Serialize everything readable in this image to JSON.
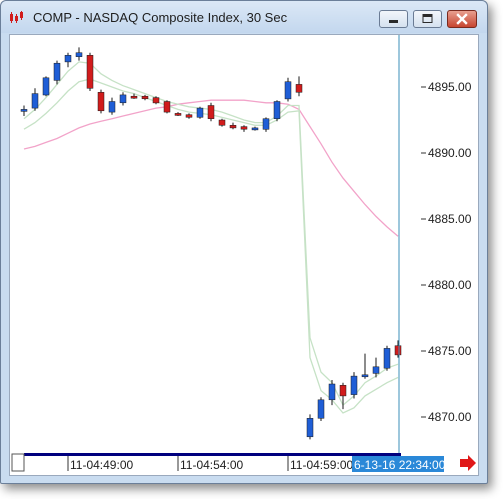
{
  "window": {
    "title": "COMP - NASDAQ Composite Index, 30 Sec",
    "minimize_icon": "minimize-icon",
    "maximize_icon": "maximize-icon",
    "close_icon": "close-icon",
    "app_icon": "candlestick-app-icon"
  },
  "price_axis": {
    "labels": [
      "4895.00",
      "4890.00",
      "4885.00",
      "4880.00",
      "4875.00",
      "4870.00"
    ]
  },
  "time_axis": {
    "labels": [
      "11-04:49:00",
      "11-04:54:00",
      "11-04:59:00"
    ],
    "cursor_time": "6-13-16 22:34:00"
  },
  "scroll_arrow": {
    "icon": "red-right-arrow-icon"
  },
  "colors": {
    "up_candle": "#1f5ed6",
    "down_candle": "#d11c1c",
    "avg_line_green": "#c6e2c6",
    "avg_line_pink": "#f2a3c9",
    "cursor_line": "#3b8fb8",
    "cursor_box": "#2a88d8",
    "scrollbar": "#00007e"
  },
  "chart_data": {
    "type": "candlestick",
    "symbol": "COMP",
    "interval": "30 Sec",
    "ylim": [
      4868,
      4900
    ],
    "candles": [
      {
        "o": 4893.2,
        "h": 4893.6,
        "l": 4892.8,
        "c": 4893.3
      },
      {
        "o": 4893.4,
        "h": 4894.9,
        "l": 4893.2,
        "c": 4894.5
      },
      {
        "o": 4894.4,
        "h": 4895.8,
        "l": 4894.3,
        "c": 4895.7
      },
      {
        "o": 4895.5,
        "h": 4897.0,
        "l": 4895.2,
        "c": 4896.8
      },
      {
        "o": 4896.9,
        "h": 4897.6,
        "l": 4896.5,
        "c": 4897.4
      },
      {
        "o": 4897.3,
        "h": 4898.0,
        "l": 4897.0,
        "c": 4897.6
      },
      {
        "o": 4897.4,
        "h": 4897.6,
        "l": 4894.7,
        "c": 4894.9
      },
      {
        "o": 4894.6,
        "h": 4894.8,
        "l": 4893.0,
        "c": 4893.2
      },
      {
        "o": 4893.1,
        "h": 4894.2,
        "l": 4892.9,
        "c": 4893.9
      },
      {
        "o": 4893.8,
        "h": 4894.6,
        "l": 4893.6,
        "c": 4894.4
      },
      {
        "o": 4894.3,
        "h": 4894.5,
        "l": 4894.1,
        "c": 4894.2
      },
      {
        "o": 4894.3,
        "h": 4894.4,
        "l": 4894.0,
        "c": 4894.1
      },
      {
        "o": 4894.2,
        "h": 4894.3,
        "l": 4893.7,
        "c": 4893.8
      },
      {
        "o": 4893.9,
        "h": 4894.0,
        "l": 4893.0,
        "c": 4893.1
      },
      {
        "o": 4893.0,
        "h": 4893.1,
        "l": 4892.8,
        "c": 4892.9
      },
      {
        "o": 4892.9,
        "h": 4893.0,
        "l": 4892.6,
        "c": 4892.7
      },
      {
        "o": 4892.7,
        "h": 4893.5,
        "l": 4892.6,
        "c": 4893.4
      },
      {
        "o": 4893.6,
        "h": 4893.8,
        "l": 4892.4,
        "c": 4892.6
      },
      {
        "o": 4892.5,
        "h": 4892.6,
        "l": 4892.0,
        "c": 4892.1
      },
      {
        "o": 4892.1,
        "h": 4892.3,
        "l": 4891.8,
        "c": 4891.9
      },
      {
        "o": 4892.0,
        "h": 4892.1,
        "l": 4891.6,
        "c": 4891.8
      },
      {
        "o": 4891.8,
        "h": 4892.0,
        "l": 4891.7,
        "c": 4891.9
      },
      {
        "o": 4891.8,
        "h": 4892.7,
        "l": 4891.6,
        "c": 4892.6
      },
      {
        "o": 4892.6,
        "h": 4894.0,
        "l": 4892.4,
        "c": 4893.9
      },
      {
        "o": 4894.1,
        "h": 4895.7,
        "l": 4893.9,
        "c": 4895.4
      },
      {
        "o": 4895.2,
        "h": 4895.8,
        "l": 4894.3,
        "c": 4894.6
      },
      {
        "o": 4868.5,
        "h": 4870.2,
        "l": 4868.3,
        "c": 4869.9
      },
      {
        "o": 4869.9,
        "h": 4871.5,
        "l": 4869.7,
        "c": 4871.3
      },
      {
        "o": 4871.3,
        "h": 4872.8,
        "l": 4870.9,
        "c": 4872.5
      },
      {
        "o": 4872.4,
        "h": 4872.6,
        "l": 4870.6,
        "c": 4871.6
      },
      {
        "o": 4871.7,
        "h": 4873.4,
        "l": 4871.4,
        "c": 4873.1
      },
      {
        "o": 4873.1,
        "h": 4874.8,
        "l": 4872.9,
        "c": 4873.2
      },
      {
        "o": 4873.3,
        "h": 4874.5,
        "l": 4873.0,
        "c": 4873.8
      },
      {
        "o": 4873.7,
        "h": 4875.4,
        "l": 4873.5,
        "c": 4875.2
      },
      {
        "o": 4875.4,
        "h": 4875.8,
        "l": 4874.5,
        "c": 4874.7
      }
    ],
    "ma_upper": [
      4892.6,
      4893.3,
      4894.2,
      4895.2,
      4896.2,
      4896.9,
      4896.8,
      4896.0,
      4895.5,
      4895.1,
      4894.8,
      4894.5,
      4894.2,
      4893.9,
      4893.7,
      4893.5,
      4893.4,
      4893.3,
      4893.1,
      4892.8,
      4892.5,
      4892.3,
      4892.3,
      4892.8,
      4893.6,
      4893.6,
      4876.0,
      4873.4,
      4872.6,
      4870.9,
      4871.6,
      4872.6,
      4873.1,
      4873.7,
      4874.0
    ],
    "ma_lower": [
      4891.8,
      4892.3,
      4893.0,
      4893.8,
      4894.7,
      4895.4,
      4895.6,
      4895.3,
      4895.0,
      4894.7,
      4894.5,
      4894.2,
      4893.9,
      4893.6,
      4893.3,
      4893.1,
      4893.0,
      4892.9,
      4892.7,
      4892.5,
      4892.3,
      4892.1,
      4892.1,
      4892.5,
      4893.1,
      4893.2,
      4874.5,
      4872.0,
      4871.3,
      4870.3,
      4870.7,
      4871.6,
      4872.1,
      4872.6,
      4873.0
    ],
    "ma_slow": [
      4890.3,
      4890.5,
      4890.8,
      4891.1,
      4891.5,
      4891.9,
      4892.2,
      4892.4,
      4892.6,
      4892.8,
      4893.0,
      4893.2,
      4893.4,
      4893.5,
      4893.7,
      4893.8,
      4893.9,
      4894.0,
      4894.0,
      4894.0,
      4894.0,
      4893.9,
      4893.8,
      4893.8,
      4893.7,
      4893.3,
      4892.0,
      4890.7,
      4889.3,
      4888.1,
      4887.1,
      4886.1,
      4885.2,
      4884.4,
      4883.7
    ]
  }
}
